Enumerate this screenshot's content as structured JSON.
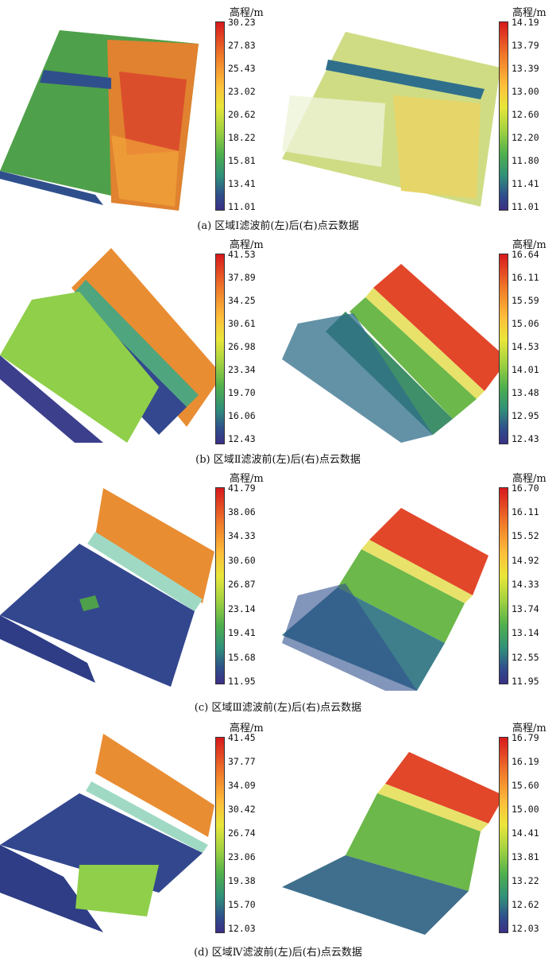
{
  "colorbar_title": "高程/m",
  "panels": [
    {
      "caption": "(a) 区域Ⅰ滤波前(左)后(右)点云数据",
      "left_ticks": [
        "30.23",
        "27.83",
        "25.43",
        "23.02",
        "20.62",
        "18.22",
        "15.81",
        "13.41",
        "11.01"
      ],
      "right_ticks": [
        "14.19",
        "13.79",
        "13.39",
        "13.00",
        "12.60",
        "12.20",
        "11.80",
        "11.41",
        "11.01"
      ]
    },
    {
      "caption": "(b) 区域Ⅱ滤波前(左)后(右)点云数据",
      "left_ticks": [
        "41.53",
        "37.89",
        "34.25",
        "30.61",
        "26.98",
        "23.34",
        "19.70",
        "16.06",
        "12.43"
      ],
      "right_ticks": [
        "16.64",
        "16.11",
        "15.59",
        "15.06",
        "14.53",
        "14.01",
        "13.48",
        "12.95",
        "12.43"
      ]
    },
    {
      "caption": "(c) 区域Ⅲ滤波前(左)后(右)点云数据",
      "left_ticks": [
        "41.79",
        "38.06",
        "34.33",
        "30.60",
        "26.87",
        "23.14",
        "19.41",
        "15.68",
        "11.95"
      ],
      "right_ticks": [
        "16.70",
        "16.11",
        "15.52",
        "14.92",
        "14.33",
        "13.74",
        "13.14",
        "12.55",
        "11.95"
      ]
    },
    {
      "caption": "(d) 区域Ⅳ滤波前(左)后(右)点云数据",
      "left_ticks": [
        "41.45",
        "37.77",
        "34.09",
        "30.42",
        "26.74",
        "23.06",
        "19.38",
        "15.70",
        "12.03"
      ],
      "right_ticks": [
        "16.79",
        "16.19",
        "15.60",
        "15.00",
        "14.41",
        "13.81",
        "13.22",
        "12.62",
        "12.03"
      ]
    }
  ]
}
